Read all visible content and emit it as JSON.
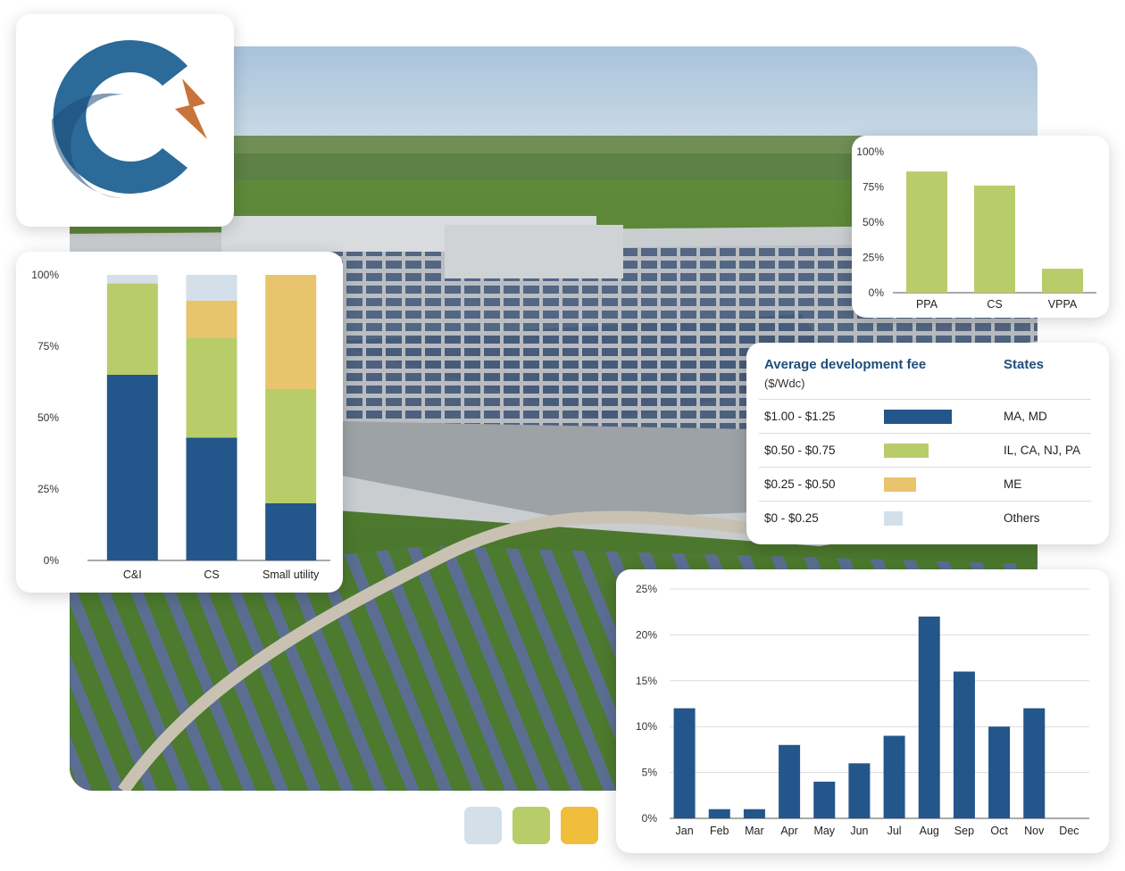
{
  "colors": {
    "navy": "#23568a",
    "green": "#b9cc6a",
    "yellow": "#e8c46c",
    "light": "#d3e0ea",
    "logo_blue": "#2b6a99",
    "logo_orange": "#c8733a"
  },
  "logo": {
    "icon": "company-logo-c-lightning"
  },
  "stacked_chart": {
    "chart_data": {
      "type": "bar",
      "stacked": true,
      "categories": [
        "C&I",
        "CS",
        "Small utility"
      ],
      "series": [
        {
          "color": "#23568a",
          "values": [
            65,
            43,
            20
          ]
        },
        {
          "color": "#b9cc6a",
          "values": [
            32,
            35,
            40
          ]
        },
        {
          "color": "#e8c46c",
          "values": [
            0,
            13,
            40
          ]
        },
        {
          "color": "#d3e0ea",
          "values": [
            3,
            9,
            0
          ]
        }
      ],
      "yticks": [
        "0%",
        "25%",
        "50%",
        "75%",
        "100%"
      ],
      "ylim": [
        0,
        100
      ]
    }
  },
  "offtake_chart": {
    "chart_data": {
      "type": "bar",
      "categories": [
        "PPA",
        "CS",
        "VPPA"
      ],
      "values": [
        86,
        76,
        17
      ],
      "color": "#b9cc6a",
      "yticks": [
        "0%",
        "25%",
        "50%",
        "75%",
        "100%"
      ],
      "ylim": [
        0,
        100
      ]
    }
  },
  "fee_table": {
    "title": "Average development fee",
    "unit": "($/Wdc)",
    "states_header": "States",
    "rows": [
      {
        "range": "$1.00 - $1.25",
        "states": "MA, MD",
        "color": "#23568a",
        "level": 1.0
      },
      {
        "range": "$0.50 - $0.75",
        "states": "IL, CA, NJ, PA",
        "color": "#b9cc6a",
        "level": 0.66
      },
      {
        "range": "$0.25 - $0.50",
        "states": "ME",
        "color": "#e8c46c",
        "level": 0.47
      },
      {
        "range": "$0 - $0.25",
        "states": "Others",
        "color": "#d3e0ea",
        "level": 0.27
      }
    ]
  },
  "monthly_chart": {
    "chart_data": {
      "type": "bar",
      "categories": [
        "Jan",
        "Feb",
        "Mar",
        "Apr",
        "May",
        "Jun",
        "Jul",
        "Aug",
        "Sep",
        "Oct",
        "Nov",
        "Dec"
      ],
      "values": [
        12,
        1,
        1,
        8,
        4,
        6,
        9,
        22,
        16,
        10,
        12,
        0
      ],
      "color": "#23568a",
      "yticks": [
        "0%",
        "5%",
        "10%",
        "15%",
        "20%",
        "25%"
      ],
      "ylim": [
        0,
        25
      ],
      "grid": true
    }
  },
  "legend_swatches": [
    "#d3e0ea",
    "#b9cc6a",
    "#f0bd3c"
  ]
}
